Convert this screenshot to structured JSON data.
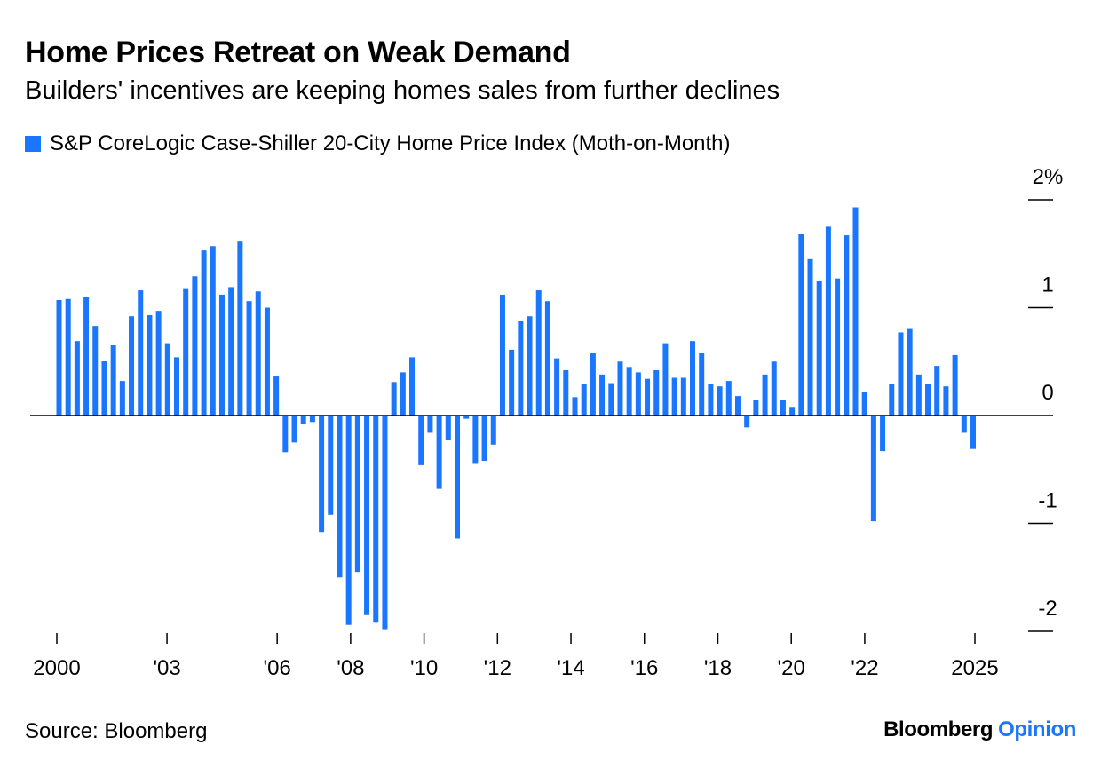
{
  "chart_data": {
    "type": "bar",
    "title": "Home Prices Retreat on Weak Demand",
    "subtitle": "Builders' incentives are keeping homes sales from further declines",
    "series": [
      {
        "name": "S&P CoreLogic Case-Shiller 20-City Home Price Index (Moth-on-Month)",
        "values": [
          1.07,
          1.08,
          0.69,
          1.1,
          0.83,
          0.51,
          0.65,
          0.32,
          0.92,
          1.16,
          0.93,
          0.97,
          0.67,
          0.54,
          1.18,
          1.29,
          1.53,
          1.57,
          1.12,
          1.19,
          1.62,
          1.06,
          1.15,
          1.0,
          0.37,
          -0.34,
          -0.25,
          -0.08,
          -0.06,
          -1.08,
          -0.92,
          -1.5,
          -1.94,
          -1.45,
          -1.85,
          -1.92,
          -1.98,
          0.31,
          0.4,
          0.54,
          -0.46,
          -0.16,
          -0.68,
          -0.23,
          -1.14,
          -0.03,
          -0.44,
          -0.42,
          -0.27,
          1.12,
          0.61,
          0.88,
          0.92,
          1.16,
          1.06,
          0.53,
          0.42,
          0.17,
          0.29,
          0.58,
          0.38,
          0.3,
          0.5,
          0.45,
          0.4,
          0.34,
          0.42,
          0.67,
          0.35,
          0.35,
          0.69,
          0.58,
          0.29,
          0.27,
          0.32,
          0.18,
          -0.11,
          0.14,
          0.38,
          0.5,
          0.14,
          0.08,
          1.68,
          1.45,
          1.25,
          1.75,
          1.27,
          1.67,
          1.93,
          0.22,
          -0.98,
          -0.33,
          0.29,
          0.77,
          0.81,
          0.38,
          0.29,
          0.46,
          0.27,
          0.56,
          -0.16,
          -0.31
        ],
        "color": "#1a75ff"
      }
    ],
    "ylim": [
      -2,
      2
    ],
    "y_ticks": [
      2,
      1,
      0,
      -1,
      -2
    ],
    "y_tick_labels": [
      "2%",
      "1",
      "0",
      "-1",
      "-2"
    ],
    "x_range": [
      2000,
      2027
    ],
    "x_ticks": [
      {
        "year": 2000,
        "label": "2000"
      },
      {
        "year": 2003,
        "label": "'03"
      },
      {
        "year": 2006,
        "label": "'06"
      },
      {
        "year": 2008,
        "label": "'08"
      },
      {
        "year": 2010,
        "label": "'10"
      },
      {
        "year": 2012,
        "label": "'12"
      },
      {
        "year": 2014,
        "label": "'14"
      },
      {
        "year": 2016,
        "label": "'16"
      },
      {
        "year": 2018,
        "label": "'18"
      },
      {
        "year": 2020,
        "label": "'20"
      },
      {
        "year": 2022,
        "label": "'22"
      },
      {
        "year": 2025,
        "label": "2025"
      }
    ],
    "xlabel": "",
    "ylabel": "",
    "grid": false,
    "legend_position": "top-left"
  },
  "footer": {
    "source": "Source: Bloomberg",
    "brand": "Bloomberg",
    "brand_suffix": "Opinion",
    "brand_suffix_color": "#1a75ff"
  }
}
